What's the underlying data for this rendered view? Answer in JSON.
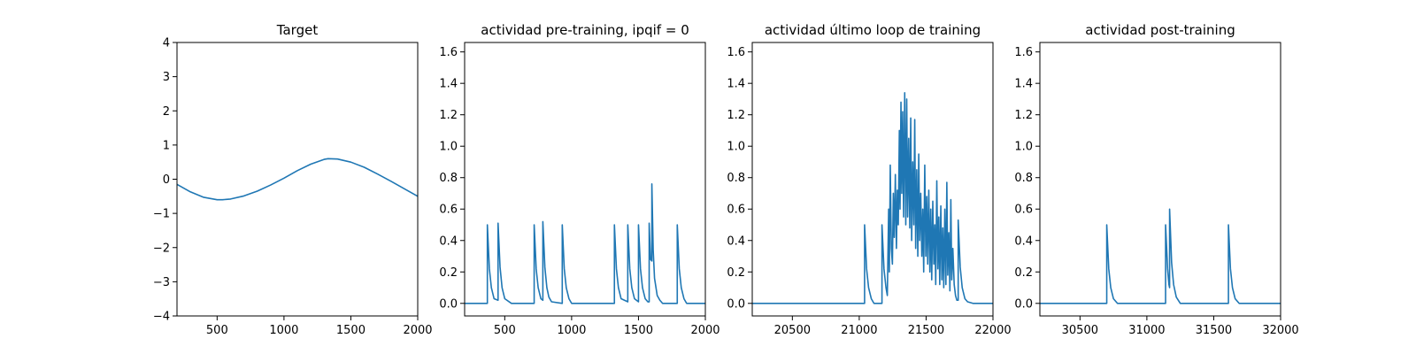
{
  "figure": {
    "series_color": "#1f77b4"
  },
  "chart_data": [
    {
      "type": "line",
      "title": "Target",
      "xlim": [
        200,
        2000
      ],
      "ylim": [
        -4,
        4
      ],
      "xticks": [
        500,
        1000,
        1500,
        2000
      ],
      "yticks": [
        -4,
        -3,
        -2,
        -1,
        0,
        1,
        2,
        3,
        4
      ],
      "ytick_format": "int",
      "series": [
        {
          "x": [
            200,
            300,
            400,
            500,
            540,
            600,
            700,
            800,
            900,
            1000,
            1100,
            1200,
            1300,
            1330,
            1400,
            1500,
            1600,
            1700,
            1800,
            1900,
            2000
          ],
          "y": [
            -0.15,
            -0.37,
            -0.53,
            -0.6,
            -0.6,
            -0.58,
            -0.49,
            -0.35,
            -0.17,
            0.03,
            0.25,
            0.44,
            0.58,
            0.6,
            0.59,
            0.5,
            0.35,
            0.15,
            -0.06,
            -0.28,
            -0.5
          ]
        }
      ]
    },
    {
      "type": "line",
      "title": "actividad pre-training, ipqif = 0",
      "xlim": [
        200,
        2000
      ],
      "ylim": [
        -0.08,
        1.66
      ],
      "xticks": [
        500,
        1000,
        1500,
        2000
      ],
      "yticks": [
        0.0,
        0.2,
        0.4,
        0.6,
        0.8,
        1.0,
        1.2,
        1.4,
        1.6
      ],
      "ytick_format": "1dp",
      "series": [
        {
          "x": [
            200,
            370,
            370,
            385,
            400,
            420,
            450,
            450,
            465,
            480,
            500,
            550,
            720,
            720,
            735,
            750,
            770,
            785,
            785,
            800,
            815,
            830,
            850,
            930,
            930,
            945,
            960,
            980,
            1000,
            1320,
            1320,
            1335,
            1350,
            1370,
            1420,
            1420,
            1435,
            1450,
            1470,
            1500,
            1500,
            1515,
            1530,
            1550,
            1570,
            1580,
            1580,
            1590,
            1600,
            1600,
            1610,
            1620,
            1640,
            1660,
            1680,
            1790,
            1790,
            1805,
            1820,
            1840,
            1860,
            2000
          ],
          "y": [
            0,
            0,
            0.5,
            0.22,
            0.1,
            0.03,
            0.02,
            0.51,
            0.23,
            0.1,
            0.03,
            0,
            0,
            0.5,
            0.22,
            0.1,
            0.03,
            0.02,
            0.52,
            0.23,
            0.1,
            0.04,
            0.01,
            0,
            0.5,
            0.22,
            0.1,
            0.03,
            0,
            0,
            0.5,
            0.22,
            0.1,
            0.03,
            0.01,
            0.5,
            0.22,
            0.1,
            0.03,
            0.01,
            0.5,
            0.22,
            0.1,
            0.03,
            0.01,
            0.01,
            0.51,
            0.28,
            0.27,
            0.76,
            0.34,
            0.16,
            0.05,
            0.02,
            0,
            0,
            0.5,
            0.22,
            0.1,
            0.03,
            0,
            0
          ]
        }
      ]
    },
    {
      "type": "line",
      "title": "actividad último loop de training",
      "xlim": [
        20200,
        22000
      ],
      "ylim": [
        -0.08,
        1.66
      ],
      "xticks": [
        20500,
        21000,
        21500,
        22000
      ],
      "yticks": [
        0.0,
        0.2,
        0.4,
        0.6,
        0.8,
        1.0,
        1.2,
        1.4,
        1.6
      ],
      "ytick_format": "1dp",
      "series": [
        {
          "x": [
            20200,
            21040,
            21040,
            21055,
            21070,
            21090,
            21110,
            21170,
            21170,
            21185,
            21200,
            21210,
            21220,
            21225,
            21232,
            21240,
            21248,
            21255,
            21262,
            21270,
            21278,
            21285,
            21292,
            21300,
            21305,
            21312,
            21318,
            21325,
            21332,
            21340,
            21348,
            21355,
            21362,
            21370,
            21378,
            21385,
            21392,
            21400,
            21408,
            21415,
            21422,
            21430,
            21438,
            21445,
            21452,
            21460,
            21468,
            21475,
            21482,
            21490,
            21498,
            21505,
            21512,
            21520,
            21528,
            21535,
            21542,
            21550,
            21558,
            21565,
            21572,
            21580,
            21588,
            21595,
            21602,
            21610,
            21618,
            21625,
            21632,
            21640,
            21648,
            21655,
            21662,
            21670,
            21678,
            21685,
            21692,
            21700,
            21710,
            21720,
            21730,
            21740,
            21740,
            21755,
            21770,
            21790,
            21810,
            21850,
            22000
          ],
          "y": [
            0,
            0,
            0.5,
            0.22,
            0.1,
            0.03,
            0,
            0,
            0.5,
            0.22,
            0.1,
            0.05,
            0.6,
            0.2,
            0.88,
            0.35,
            0.25,
            0.7,
            0.42,
            0.82,
            0.35,
            0.72,
            0.5,
            1.1,
            0.6,
            1.28,
            0.7,
            1.22,
            0.55,
            1.34,
            0.5,
            1.3,
            0.55,
            1.05,
            0.48,
            1.18,
            0.4,
            0.9,
            0.5,
            1.17,
            0.35,
            0.85,
            0.3,
            0.95,
            0.4,
            0.7,
            0.3,
            0.6,
            0.2,
            0.88,
            0.3,
            0.68,
            0.25,
            0.72,
            0.2,
            0.6,
            0.15,
            0.65,
            0.25,
            0.5,
            0.12,
            0.78,
            0.22,
            0.55,
            0.12,
            0.62,
            0.15,
            0.48,
            0.1,
            0.6,
            0.12,
            0.77,
            0.18,
            0.45,
            0.08,
            0.66,
            0.15,
            0.35,
            0.12,
            0.05,
            0.02,
            0.02,
            0.53,
            0.23,
            0.1,
            0.03,
            0.01,
            0,
            0
          ]
        }
      ]
    },
    {
      "type": "line",
      "title": "actividad post-training",
      "xlim": [
        30200,
        32000
      ],
      "ylim": [
        -0.08,
        1.66
      ],
      "xticks": [
        30500,
        31000,
        31500,
        32000
      ],
      "yticks": [
        0.0,
        0.2,
        0.4,
        0.6,
        0.8,
        1.0,
        1.2,
        1.4,
        1.6
      ],
      "ytick_format": "1dp",
      "series": [
        {
          "x": [
            30200,
            30700,
            30700,
            30715,
            30730,
            30750,
            30780,
            31140,
            31140,
            31155,
            31165,
            31170,
            31170,
            31185,
            31200,
            31220,
            31250,
            31610,
            31610,
            31625,
            31640,
            31660,
            31690,
            32000
          ],
          "y": [
            0,
            0,
            0.5,
            0.22,
            0.1,
            0.03,
            0,
            0,
            0.5,
            0.22,
            0.12,
            0.1,
            0.6,
            0.26,
            0.12,
            0.04,
            0,
            0,
            0.5,
            0.22,
            0.1,
            0.03,
            0,
            0
          ]
        }
      ]
    }
  ]
}
